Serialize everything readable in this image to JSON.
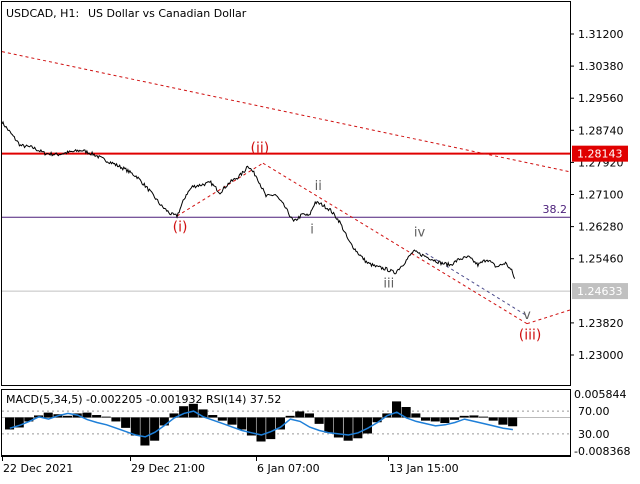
{
  "header": {
    "symbol_timeframe": "USDCAD, H1:",
    "description": "US Dollar vs Canadian Dollar"
  },
  "colors": {
    "background": "#ffffff",
    "price_line": "#000000",
    "resistance_line": "#e00000",
    "resistance_label_bg": "#e00000",
    "fib_line": "#4b1f7a",
    "current_price_line": "#c0c0c0",
    "current_price_label_bg": "#c0c0c0",
    "wave_major": "#d01010",
    "wave_minor": "#606060",
    "trend_dashed": "#d01010",
    "channel_dashed": "#4a4a8a",
    "macd_histogram": "#000000",
    "rsi_line": "#1e7fd8"
  },
  "chart_data": [
    {
      "type": "line",
      "title": "USDCAD, H1:  US Dollar vs Canadian Dollar",
      "y_axis_ticks": [
        "1.31200",
        "1.30380",
        "1.29560",
        "1.28740",
        "1.27920",
        "1.27100",
        "1.26280",
        "1.25460",
        "1.23820",
        "1.23000"
      ],
      "x_axis_ticks": [
        "22 Dec 2021",
        "29 Dec 21:00",
        "6 Jan 07:00",
        "13 Jan 15:00"
      ],
      "ylim": [
        1.2255,
        1.3155
      ],
      "price_path": [
        [
          0,
          1.2895
        ],
        [
          3,
          1.2865
        ],
        [
          6,
          1.2835
        ],
        [
          10,
          1.283
        ],
        [
          14,
          1.2815
        ],
        [
          18,
          1.2812
        ],
        [
          22,
          1.2818
        ],
        [
          26,
          1.2823
        ],
        [
          30,
          1.2812
        ],
        [
          33,
          1.28
        ],
        [
          36,
          1.279
        ],
        [
          40,
          1.2775
        ],
        [
          44,
          1.2755
        ],
        [
          48,
          1.272
        ],
        [
          52,
          1.268
        ],
        [
          55,
          1.266
        ],
        [
          57,
          1.2655
        ],
        [
          60,
          1.271
        ],
        [
          62,
          1.273
        ],
        [
          65,
          1.2735
        ],
        [
          68,
          1.274
        ],
        [
          71,
          1.2715
        ],
        [
          74,
          1.274
        ],
        [
          77,
          1.2755
        ],
        [
          79,
          1.277
        ],
        [
          80,
          1.2785
        ],
        [
          83,
          1.2755
        ],
        [
          86,
          1.2705
        ],
        [
          89,
          1.271
        ],
        [
          92,
          1.268
        ],
        [
          95,
          1.264
        ],
        [
          98,
          1.266
        ],
        [
          100,
          1.2655
        ],
        [
          102,
          1.269
        ],
        [
          104,
          1.2685
        ],
        [
          107,
          1.267
        ],
        [
          110,
          1.264
        ],
        [
          113,
          1.259
        ],
        [
          116,
          1.256
        ],
        [
          119,
          1.2535
        ],
        [
          122,
          1.2525
        ],
        [
          125,
          1.252
        ],
        [
          128,
          1.251
        ],
        [
          131,
          1.2535
        ],
        [
          134,
          1.2565
        ],
        [
          137,
          1.2555
        ],
        [
          140,
          1.2545
        ],
        [
          143,
          1.2535
        ],
        [
          146,
          1.253
        ],
        [
          149,
          1.2545
        ],
        [
          152,
          1.255
        ],
        [
          155,
          1.253
        ],
        [
          158,
          1.2545
        ],
        [
          161,
          1.2525
        ],
        [
          164,
          1.2535
        ],
        [
          166,
          1.2515
        ],
        [
          167,
          1.2495
        ]
      ],
      "price_noise": 0.0009,
      "horizontal_levels": [
        {
          "name": "resistance",
          "value": 1.28143,
          "label": "1.28143"
        },
        {
          "name": "fib-38",
          "value": 1.2652,
          "label": "38.2"
        },
        {
          "name": "current-price",
          "value": 1.24633,
          "label": "1.24633"
        }
      ],
      "trend_lines": [
        {
          "name": "long-trend",
          "from": [
            0,
            1.3075
          ],
          "to": [
            185,
            1.2768
          ]
        },
        {
          "name": "wave-1-2",
          "from": [
            57,
            1.2655
          ],
          "to": [
            85,
            1.279
          ]
        },
        {
          "name": "wave-2-3",
          "from": [
            85,
            1.279
          ],
          "to": [
            171,
            1.238
          ]
        },
        {
          "name": "wave-3-projection",
          "from": [
            171,
            1.238
          ],
          "to": [
            185,
            1.2415
          ]
        },
        {
          "name": "wave-iv-v",
          "from": [
            138,
            1.256
          ],
          "to": [
            171,
            1.24
          ]
        }
      ],
      "wave_labels": [
        {
          "text": "(i)",
          "x": 58,
          "y": 1.2615,
          "style": "major"
        },
        {
          "text": "(ii)",
          "x": 84,
          "y": 1.2817,
          "style": "major"
        },
        {
          "text": "(iii)",
          "x": 172,
          "y": 1.234,
          "style": "major"
        },
        {
          "text": "i",
          "x": 101,
          "y": 1.261,
          "style": "minor"
        },
        {
          "text": "ii",
          "x": 103,
          "y": 1.2722,
          "style": "minor"
        },
        {
          "text": "iii",
          "x": 126,
          "y": 1.2472,
          "style": "minor"
        },
        {
          "text": "iv",
          "x": 136,
          "y": 1.2603,
          "style": "minor"
        },
        {
          "text": "v",
          "x": 171,
          "y": 1.2392,
          "style": "minor"
        }
      ],
      "grid": false
    },
    {
      "type": "bar",
      "title": "MACD(5,34,5) -0.002205 -0.001932 RSI(14) 37.52",
      "indicator": "MACD(5,34,5)",
      "macd_value": "-0.002205",
      "signal_value": "-0.001932",
      "rsi_label": "RSI(14)",
      "rsi_value": "37.52",
      "macd_axis_ticks": [
        "0.005844",
        "-0.008368"
      ],
      "rsi_axis_ticks": [
        "70.00",
        "30.00"
      ],
      "ylim": [
        -0.008368,
        0.005844
      ],
      "macd_histogram": [
        -0.003,
        -0.0025,
        -0.001,
        0.0005,
        0.0012,
        0.0008,
        0.0004,
        0.001,
        0.0012,
        0.0006,
        0.0002,
        -0.001,
        -0.0026,
        -0.0045,
        -0.007,
        -0.0058,
        -0.002,
        0.001,
        0.0028,
        0.0034,
        0.002,
        0.0006,
        -0.0008,
        -0.0018,
        -0.003,
        -0.0045,
        -0.006,
        -0.0054,
        -0.003,
        0.0004,
        0.0015,
        0.001,
        -0.0016,
        -0.0038,
        -0.005,
        -0.0058,
        -0.0052,
        -0.004,
        -0.0012,
        0.001,
        0.004,
        0.0026,
        0.001,
        -0.0008,
        -0.001,
        -0.0014,
        -0.0006,
        0.0004,
        0.0005,
        0.0002,
        -0.0008,
        -0.0018,
        -0.0022
      ],
      "rsi": [
        40,
        45,
        52,
        60,
        56,
        62,
        66,
        63,
        55,
        50,
        46,
        40,
        34,
        28,
        25,
        33,
        45,
        58,
        66,
        70,
        60,
        54,
        48,
        42,
        36,
        32,
        28,
        34,
        42,
        56,
        52,
        42,
        36,
        32,
        30,
        28,
        32,
        40,
        50,
        62,
        68,
        58,
        52,
        48,
        44,
        46,
        50,
        56,
        52,
        48,
        44,
        40,
        37.52
      ]
    }
  ]
}
